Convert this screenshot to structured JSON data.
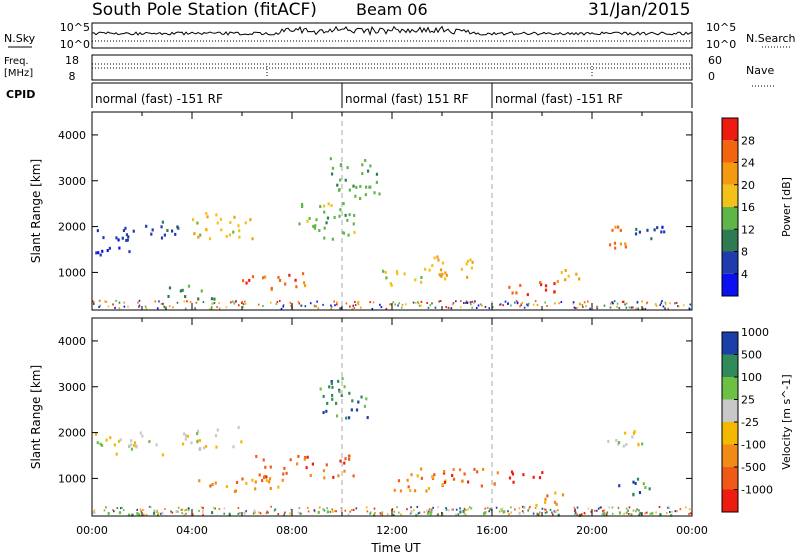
{
  "header": {
    "station": "South Pole Station (fitACF)",
    "beam": "Beam 06",
    "date": "31/Jan/2015"
  },
  "summary_panels": {
    "nsky_label": "N.Sky",
    "nsky_ticks": [
      "10^5",
      "10^0"
    ],
    "nsearch_label": "N.Search",
    "nsearch_ticks": [
      "10^5",
      "10^0"
    ],
    "freq_label_1": "Freq.",
    "freq_label_2": "[MHz]",
    "freq_ticks": [
      "18",
      "8"
    ],
    "nave_label": "Nave",
    "nave_ticks": [
      "60",
      "0"
    ],
    "cpid_label": "CPID",
    "cpid_segments": [
      {
        "label": "normal (fast) -151 RF",
        "start": 0,
        "end": 10
      },
      {
        "label": "normal (fast) 151 RF",
        "start": 10,
        "end": 16
      },
      {
        "label": "normal (fast) -151 RF",
        "start": 16,
        "end": 24
      }
    ]
  },
  "colors": {
    "power": [
      "#0a10f0",
      "#1f3cae",
      "#2e7a52",
      "#5fb548",
      "#f2c21a",
      "#f49a12",
      "#f26410",
      "#ee1b10"
    ],
    "velocity": [
      "#ee1b10",
      "#f05a18",
      "#f28a18",
      "#f5b800",
      "#c8c8c8",
      "#6cc044",
      "#2e8a5a",
      "#1c3ea8"
    ]
  },
  "chart_data": [
    {
      "type": "heatmap",
      "name": "power",
      "ylabel": "Slant Range [km]",
      "xlabel": "",
      "xlim": [
        0,
        24
      ],
      "ylim": [
        180,
        4500
      ],
      "y_ticks": [
        "1000",
        "2000",
        "3000",
        "4000"
      ],
      "y_tick_values": [
        1000,
        2000,
        3000,
        4000
      ],
      "colorbar_label": "Power [dB]",
      "colorbar_ticks": [
        "4",
        "8",
        "12",
        "16",
        "20",
        "24",
        "28"
      ],
      "colorbar_tick_values": [
        4,
        8,
        12,
        16,
        20,
        24,
        28
      ],
      "colorbar_range": [
        0,
        32
      ],
      "regions": [
        {
          "t": [
            0.0,
            1.5
          ],
          "r": [
            1350,
            1950
          ],
          "v": 5
        },
        {
          "t": [
            1.2,
            3.5
          ],
          "r": [
            1650,
            2100
          ],
          "v": 7
        },
        {
          "t": [
            3.0,
            5.0
          ],
          "r": [
            400,
            700
          ],
          "v": 11
        },
        {
          "t": [
            4.0,
            6.5
          ],
          "r": [
            1700,
            2300
          ],
          "v": 18
        },
        {
          "t": [
            6.0,
            8.5
          ],
          "r": [
            600,
            1000
          ],
          "v": 26
        },
        {
          "t": [
            8.0,
            10.5
          ],
          "r": [
            1700,
            2500
          ],
          "v": 14
        },
        {
          "t": [
            9.5,
            11.5
          ],
          "r": [
            2600,
            3500
          ],
          "v": 13
        },
        {
          "t": [
            11.5,
            13.5
          ],
          "r": [
            700,
            1100
          ],
          "v": 17
        },
        {
          "t": [
            13.5,
            15.5
          ],
          "r": [
            800,
            1400
          ],
          "v": 21
        },
        {
          "t": [
            16.5,
            18.5
          ],
          "r": [
            450,
            800
          ],
          "v": 27
        },
        {
          "t": [
            18.5,
            19.5
          ],
          "r": [
            700,
            1100
          ],
          "v": 22
        },
        {
          "t": [
            20.5,
            21.5
          ],
          "r": [
            1400,
            2000
          ],
          "v": 25
        },
        {
          "t": [
            21.5,
            23.0
          ],
          "r": [
            1600,
            2000
          ],
          "v": 6
        }
      ]
    },
    {
      "type": "heatmap",
      "name": "velocity",
      "ylabel": "Slant Range [km]",
      "xlabel": "Time UT",
      "xlim": [
        0,
        24
      ],
      "ylim": [
        180,
        4500
      ],
      "x_ticks": [
        "00:00",
        "04:00",
        "08:00",
        "12:00",
        "16:00",
        "20:00",
        "00:00"
      ],
      "x_tick_values": [
        0,
        4,
        8,
        12,
        16,
        20,
        24
      ],
      "y_ticks": [
        "1000",
        "2000",
        "3000",
        "4000"
      ],
      "y_tick_values": [
        1000,
        2000,
        3000,
        4000
      ],
      "colorbar_label": "Velocity [m s^-1]",
      "colorbar_ticks": [
        "-1000",
        "-500",
        "-100",
        "-25",
        "25",
        "100",
        "500",
        "1000"
      ],
      "regions": [
        {
          "t": [
            0.0,
            3.0
          ],
          "r": [
            1500,
            2000
          ],
          "v": 4
        },
        {
          "t": [
            3.5,
            6.0
          ],
          "r": [
            1600,
            2100
          ],
          "v": 4
        },
        {
          "t": [
            4.0,
            8.0
          ],
          "r": [
            700,
            1000
          ],
          "v": 2
        },
        {
          "t": [
            6.5,
            10.5
          ],
          "r": [
            1000,
            1500
          ],
          "v": 1
        },
        {
          "t": [
            9.0,
            11.0
          ],
          "r": [
            2300,
            3200
          ],
          "v": 6
        },
        {
          "t": [
            12.0,
            14.5
          ],
          "r": [
            700,
            1200
          ],
          "v": 2
        },
        {
          "t": [
            14.0,
            16.5
          ],
          "r": [
            800,
            1200
          ],
          "v": 1
        },
        {
          "t": [
            16.5,
            18.0
          ],
          "r": [
            900,
            1200
          ],
          "v": 0
        },
        {
          "t": [
            17.5,
            19.0
          ],
          "r": [
            400,
            700
          ],
          "v": 2
        },
        {
          "t": [
            21.0,
            22.5
          ],
          "r": [
            600,
            1000
          ],
          "v": 6
        },
        {
          "t": [
            20.5,
            22.0
          ],
          "r": [
            1600,
            2100
          ],
          "v": 4
        },
        {
          "t": [
            0.0,
            24.0
          ],
          "r": [
            180,
            280
          ],
          "v": 5
        }
      ]
    }
  ]
}
